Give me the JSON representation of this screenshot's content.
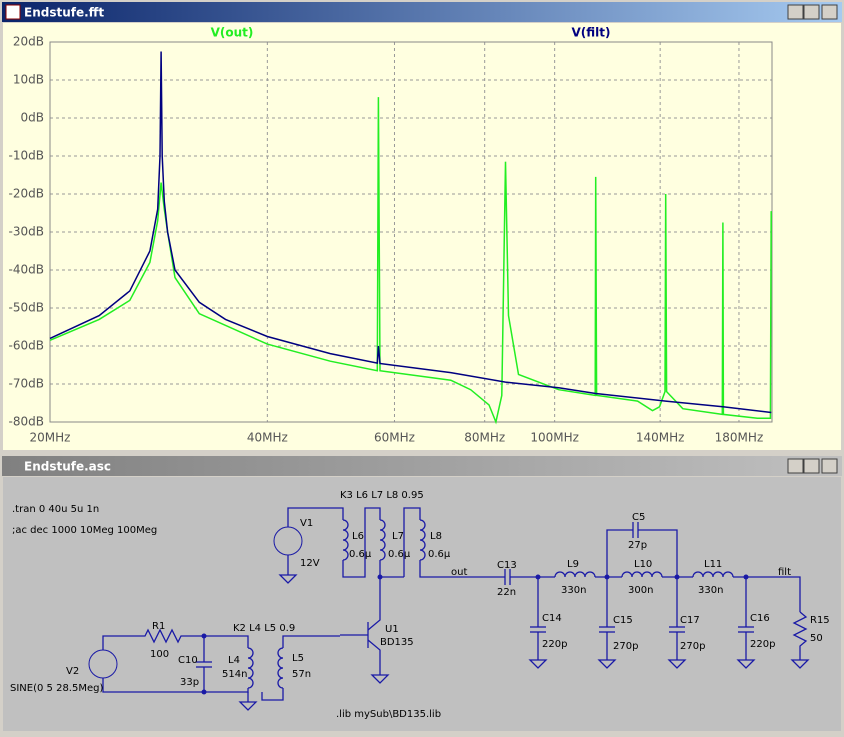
{
  "chart_window_title": "Endstufe.fft",
  "chart_data": {
    "type": "line",
    "xscale": "log",
    "grid": true,
    "xlim": [
      20,
      200
    ],
    "ylim": [
      -80,
      20
    ],
    "xticks": [
      {
        "value": 20,
        "label": "20MHz"
      },
      {
        "value": 40,
        "label": "40MHz"
      },
      {
        "value": 60,
        "label": "60MHz"
      },
      {
        "value": 80,
        "label": "80MHz"
      },
      {
        "value": 100,
        "label": "100MHz"
      },
      {
        "value": 140,
        "label": "140MHz"
      },
      {
        "value": 180,
        "label": "180MHz"
      }
    ],
    "yticks": [
      {
        "value": 20,
        "label": "20dB"
      },
      {
        "value": 10,
        "label": "10dB"
      },
      {
        "value": 0,
        "label": "0dB"
      },
      {
        "value": -10,
        "label": "-10dB"
      },
      {
        "value": -20,
        "label": "-20dB"
      },
      {
        "value": -30,
        "label": "-30dB"
      },
      {
        "value": -40,
        "label": "-40dB"
      },
      {
        "value": -50,
        "label": "-50dB"
      },
      {
        "value": -60,
        "label": "-60dB"
      },
      {
        "value": -70,
        "label": "-70dB"
      },
      {
        "value": -80,
        "label": "-80dB"
      }
    ],
    "series": [
      {
        "name": "V(out)",
        "color": "#22ee22",
        "x": [
          20,
          23.4,
          25.8,
          27.5,
          28.2,
          28.5,
          28.8,
          29.1,
          29.8,
          32.2,
          40,
          48.9,
          56.8,
          57,
          57.3,
          71.8,
          76.5,
          81.1,
          82.9,
          84.5,
          85.5,
          86.3,
          89.1,
          101.3,
          113.8,
          114,
          114.3,
          130.3,
          136.6,
          139.7,
          142.2,
          142.5,
          142.9,
          150.5,
          170.7,
          171,
          171.3,
          190.9,
          199,
          199.5
        ],
        "values": [
          -58.5,
          -53,
          -48,
          -38,
          -27,
          -17,
          -24,
          -30,
          -42,
          -51.5,
          -59.5,
          -64,
          -66.5,
          5.5,
          -66.5,
          -69,
          -71.5,
          -75.5,
          -80,
          -73,
          -11.5,
          -52,
          -67.5,
          -71.5,
          -73,
          -15.5,
          -73,
          -74.5,
          -77,
          -76,
          -72,
          -20,
          -72,
          -76.5,
          -78,
          -27.5,
          -78,
          -79,
          -79,
          -24.5
        ]
      },
      {
        "name": "V(filt)",
        "color": "#000080",
        "x": [
          20,
          23.4,
          25.8,
          27.5,
          28.2,
          28.4,
          28.5,
          28.6,
          28.8,
          29.1,
          29.8,
          32.2,
          35,
          40,
          48.9,
          56.8,
          57,
          57.3,
          71.8,
          85.5,
          101.3,
          114,
          142.5,
          171,
          199.5
        ],
        "values": [
          -58,
          -52,
          -45.5,
          -35,
          -24,
          -10,
          17.5,
          -10,
          -22,
          -30,
          -40,
          -48.5,
          -53,
          -57.5,
          -62,
          -64.5,
          -60,
          -64.6,
          -67,
          -69.5,
          -71,
          -72.5,
          -74.5,
          -76,
          -77.5
        ]
      }
    ]
  },
  "schematic": {
    "window_title": "Endstufe.asc",
    "labels": [
      ".tran 0 40u 5u 1n",
      ";ac dec 1000 10Meg 100Meg",
      "K3 L6 L7 L8 0.95",
      "V1",
      "12V",
      "L6",
      "0.6µ",
      "L7",
      "0.6µ",
      "L8",
      "0.6µ",
      "out",
      "C13",
      "22n",
      "L9",
      "330n",
      "C5",
      "27p",
      "L10",
      "300n",
      "L11",
      "330n",
      "filt",
      "C14",
      "220p",
      "C15",
      "270p",
      "C17",
      "270p",
      "C16",
      "220p",
      "R15",
      "50",
      "U1",
      "BD135",
      "K2 L4 L5 0.9",
      "R1",
      "100",
      "C10",
      "33p",
      "L4",
      "514n",
      "L5",
      "57n",
      "V2",
      "SINE(0 5 28.5Meg)",
      ".lib mySub\\BD135.lib"
    ]
  }
}
